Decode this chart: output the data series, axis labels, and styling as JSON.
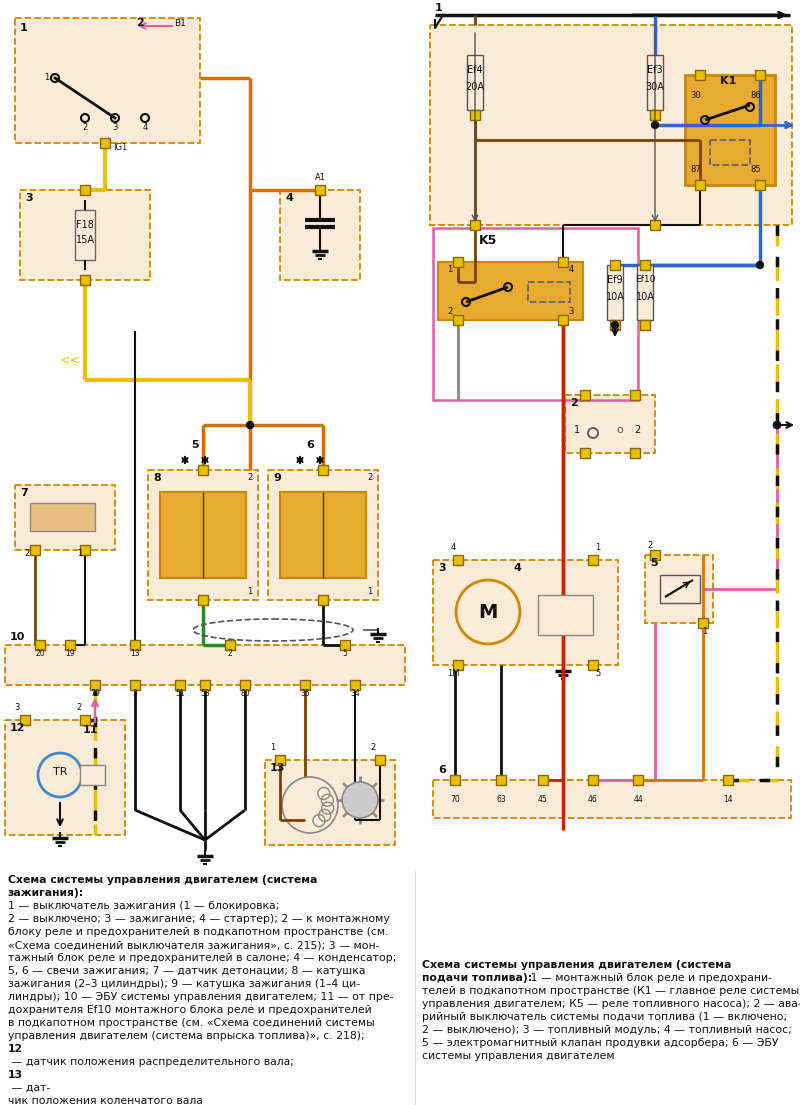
{
  "bg": "#ffffff",
  "bf": "#faebd7",
  "bf2": "#f5c842",
  "os": "#cc8800",
  "wy": "#e8c000",
  "wo": "#d07000",
  "wbl": "#111111",
  "wbr": "#7B3F00",
  "wgr": "#228B22",
  "wbu": "#3366cc",
  "wpi": "#e060a0",
  "wrd": "#cc2200",
  "wgy": "#888888",
  "relay_fill": "#e8aa30"
}
